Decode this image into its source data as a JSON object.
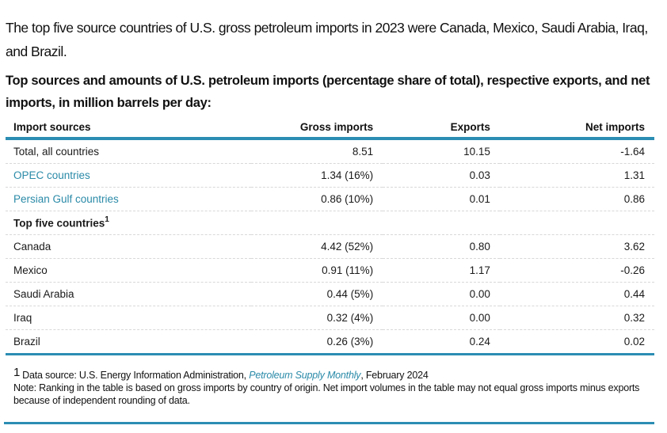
{
  "intro": "The top five source countries of U.S. gross petroleum imports in 2023 were Canada, Mexico, Saudi Arabia, Iraq, and Brazil.",
  "heading": "Top sources and amounts of U.S. petroleum imports (percentage share of total), respective exports, and net imports, in million barrels per day:",
  "table": {
    "headers": [
      "Import sources",
      "Gross imports",
      "Exports",
      "Net imports"
    ],
    "rows": [
      {
        "source": "Total, all countries",
        "gross": "8.51",
        "exports": "10.15",
        "net": "-1.64"
      },
      {
        "source": "OPEC countries",
        "gross": "1.34 (16%)",
        "exports": "0.03",
        "net": "1.31"
      },
      {
        "source": "Persian Gulf countries",
        "gross": "0.86 (10%)",
        "exports": "0.01",
        "net": "0.86"
      }
    ],
    "section_label": "Top five countries",
    "section_sup": "1",
    "countries": [
      {
        "source": "Canada",
        "gross": "4.42 (52%)",
        "exports": "0.80",
        "net": "3.62"
      },
      {
        "source": "Mexico",
        "gross": "0.91 (11%)",
        "exports": "1.17",
        "net": "-0.26"
      },
      {
        "source": "Saudi Arabia",
        "gross": "0.44 (5%)",
        "exports": "0.00",
        "net": "0.44"
      },
      {
        "source": "Iraq",
        "gross": "0.32 (4%)",
        "exports": "0.00",
        "net": "0.32"
      },
      {
        "source": "Brazil",
        "gross": "0.26 (3%)",
        "exports": "0.24",
        "net": "0.02"
      }
    ]
  },
  "footnote": {
    "mark": "1",
    "source_prefix": "Data source: U.S. Energy Information Administration, ",
    "source_link": "Petroleum Supply Monthly",
    "source_suffix": ", February 2024",
    "note": "Note: Ranking in the table is based on gross imports by country of origin. Net import volumes in the table may not equal gross imports minus exports because of independent rounding of data."
  },
  "colors": {
    "accent": "#2b8db3",
    "link": "#2a8aa8"
  }
}
